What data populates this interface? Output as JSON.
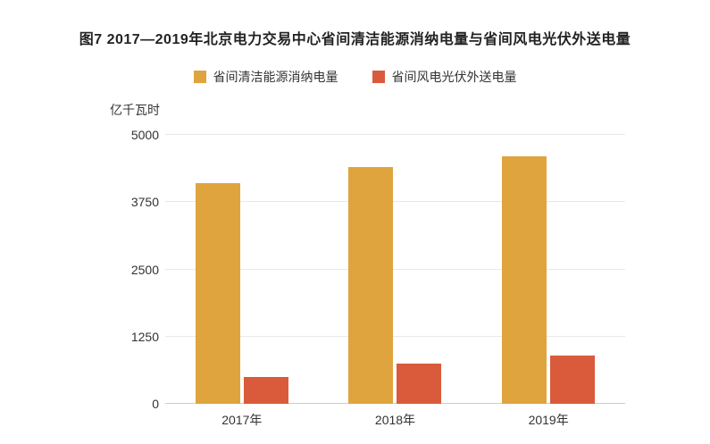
{
  "chart_data": {
    "type": "bar",
    "title": "图7 2017—2019年北京电力交易中心省间清洁能源消纳电量与省间风电光伏外送电量",
    "unit_label": "亿千瓦时",
    "categories": [
      "2017年",
      "2018年",
      "2019年"
    ],
    "series": [
      {
        "name": "省间清洁能源消纳电量",
        "color": "#DFA43E",
        "values": [
          4100,
          4400,
          4600
        ]
      },
      {
        "name": "省间风电光伏外送电量",
        "color": "#D95B3B",
        "values": [
          500,
          750,
          900
        ]
      }
    ],
    "yticks": [
      0,
      1250,
      2500,
      3750,
      5000
    ],
    "ylim": [
      0,
      5000
    ],
    "grid": true,
    "legend_position": "top"
  }
}
